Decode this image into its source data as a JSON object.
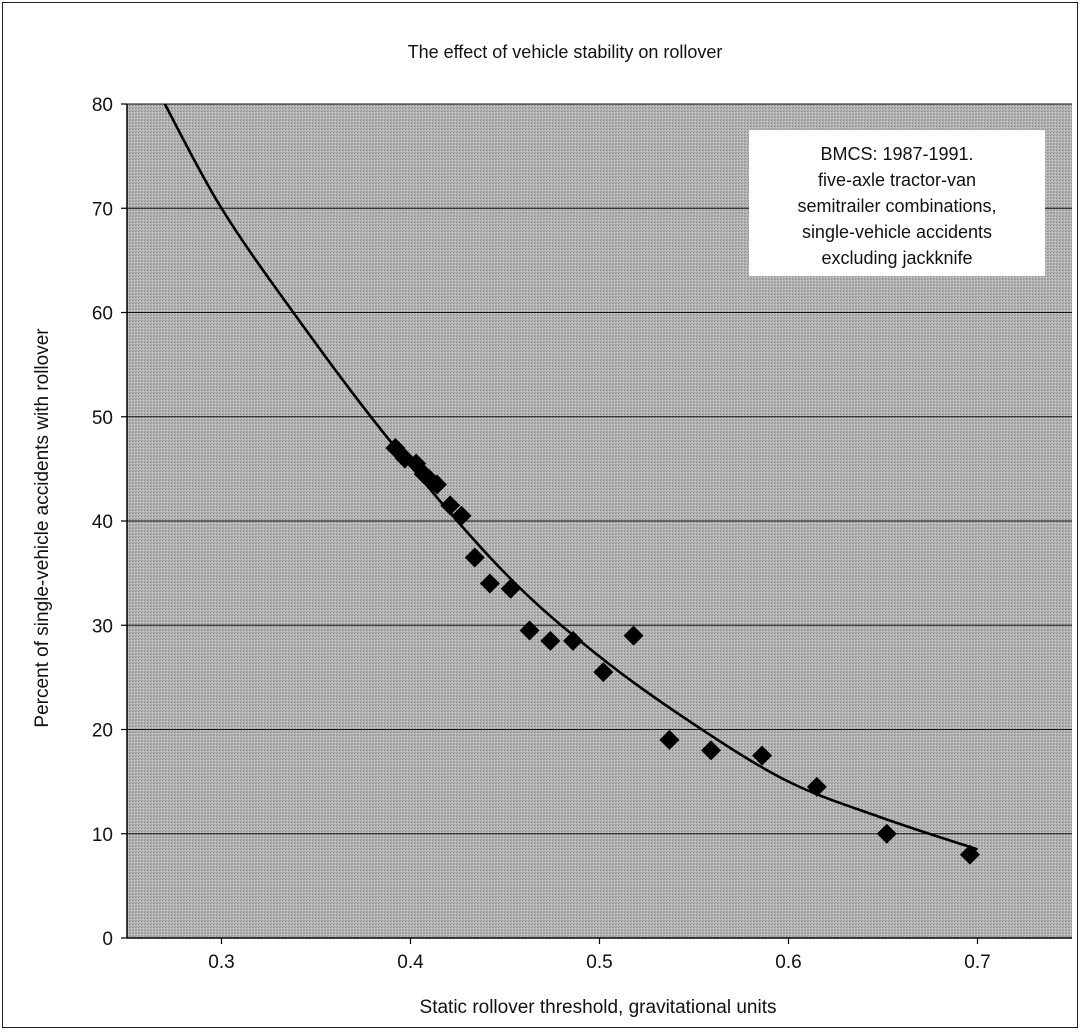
{
  "chart_data": {
    "type": "scatter",
    "title": "The effect of vehicle stability on rollover",
    "xlabel": "Static rollover threshold, gravitational units",
    "ylabel": "Percent of  single-vehicle accidents with rollover",
    "xlim": [
      0.25,
      0.75
    ],
    "ylim": [
      0,
      80
    ],
    "x_ticks": [
      "0.3",
      "0.4",
      "0.5",
      "0.6",
      "0.7"
    ],
    "x_tick_values": [
      0.3,
      0.4,
      0.5,
      0.6,
      0.7
    ],
    "y_ticks": [
      "0",
      "10",
      "20",
      "30",
      "40",
      "50",
      "60",
      "70",
      "80"
    ],
    "y_tick_values": [
      0,
      10,
      20,
      30,
      40,
      50,
      60,
      70,
      80
    ],
    "grid": "horizontal",
    "annotation_lines": [
      "BMCS: 1987-1991.",
      "five-axle tractor-van",
      "semitrailer combinations,",
      "single-vehicle accidents",
      "excluding jackknife"
    ],
    "annotation_placement": "top-right",
    "series": [
      {
        "type": "scatter",
        "marker": "diamond",
        "x": [
          0.392,
          0.397,
          0.403,
          0.407,
          0.41,
          0.414,
          0.421,
          0.427,
          0.434,
          0.442,
          0.453,
          0.463,
          0.474,
          0.486,
          0.502,
          0.518,
          0.537,
          0.559,
          0.586,
          0.615,
          0.652,
          0.696
        ],
        "y": [
          47.0,
          46.0,
          45.5,
          44.5,
          44.0,
          43.5,
          41.5,
          40.5,
          36.5,
          34.0,
          33.5,
          29.5,
          28.5,
          28.5,
          25.5,
          29.0,
          19.0,
          18.0,
          17.5,
          14.5,
          10.0,
          8.0
        ]
      },
      {
        "type": "line",
        "x": [
          0.27,
          0.3,
          0.34,
          0.39,
          0.45,
          0.5,
          0.55,
          0.6,
          0.65,
          0.7
        ],
        "y": [
          80,
          70,
          59.5,
          47.5,
          35.0,
          27.0,
          20.5,
          15.0,
          11.5,
          8.5
        ]
      }
    ],
    "colors": {
      "plot_background": "#a9a9a9",
      "marker": "#000000",
      "curve": "#000000",
      "grid": "#111111"
    }
  }
}
